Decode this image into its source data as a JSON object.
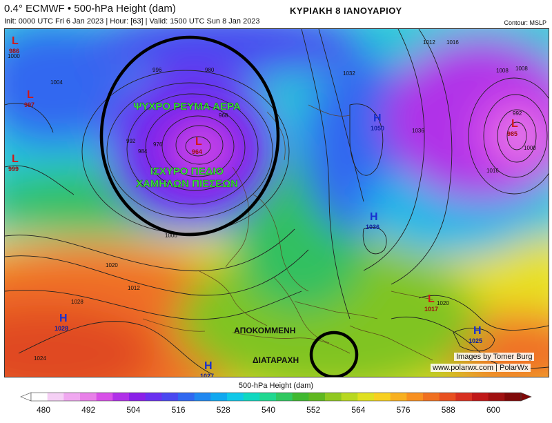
{
  "header": {
    "title": "0.4° ECMWF • 500-hPa Height (dam)",
    "subtitle": "Init: 0000 UTC Fri 6 Jan 2023 | Hour: [63] | Valid: 1500 UTC Sun 8 Jan 2023",
    "date_greek": "ΚΥΡΙΑΚΗ 8 ΙΑΝΟΥΑΡΙΟΥ",
    "contour_note": "Contour: MSLP"
  },
  "annotations": {
    "cold_air": "ΨΥΧΡΟ ΡΕΥΜΑ ΑΕΡΑ",
    "low_field_line1": "ΙΣΧΥΡΟ ΠΕΔΙΟ",
    "low_field_line2": "ΧΑΜΗΛΩΝ ΠΙΕΣΕΩΝ",
    "isolated": "ΑΠΟΚΟΜΜΕΝΗ",
    "disturbance": "ΔΙΑΤΑΡΑΧΗ",
    "accent_color": "#39e639"
  },
  "pressure_centers": [
    {
      "type": "L",
      "value": "986"
    },
    {
      "type": "L",
      "value": "997"
    },
    {
      "type": "L",
      "value": "999"
    },
    {
      "type": "L",
      "value": "964"
    },
    {
      "type": "H",
      "value": "1050"
    },
    {
      "type": "H",
      "value": "1036"
    },
    {
      "type": "L",
      "value": "985"
    },
    {
      "type": "L",
      "value": "1017"
    },
    {
      "type": "H",
      "value": "1028"
    },
    {
      "type": "H",
      "value": "1025"
    },
    {
      "type": "H",
      "value": "1027"
    }
  ],
  "isobar_labels": [
    "1000",
    "992",
    "984",
    "976",
    "968",
    "980",
    "996",
    "1004",
    "1012",
    "1020",
    "1028",
    "1024",
    "1016",
    "1008",
    "1032",
    "1036",
    "1000",
    "992",
    "1008",
    "1016",
    "1012",
    "1020",
    "1000"
  ],
  "credits": {
    "line1": "Images by Tomer Burg",
    "line2": "www.polarwx.com | PolarWx"
  },
  "colorbar": {
    "title": "500-hPa Height (dam)",
    "ticks": [
      "480",
      "492",
      "504",
      "516",
      "528",
      "540",
      "552",
      "564",
      "576",
      "588",
      "600"
    ],
    "colors": [
      "#ffffff",
      "#f5d0f5",
      "#f0a8f0",
      "#e880e8",
      "#d850e8",
      "#b030e8",
      "#8a20e8",
      "#6a30f0",
      "#4a48f0",
      "#3068f0",
      "#2088f0",
      "#10a8f0",
      "#10c8e8",
      "#10d8c0",
      "#20d890",
      "#30c860",
      "#40b830",
      "#60b820",
      "#90c820",
      "#b8d820",
      "#e0e020",
      "#f8d020",
      "#f8b020",
      "#f89020",
      "#f07020",
      "#e85020",
      "#d83020",
      "#c01818",
      "#a01010",
      "#800808"
    ]
  }
}
